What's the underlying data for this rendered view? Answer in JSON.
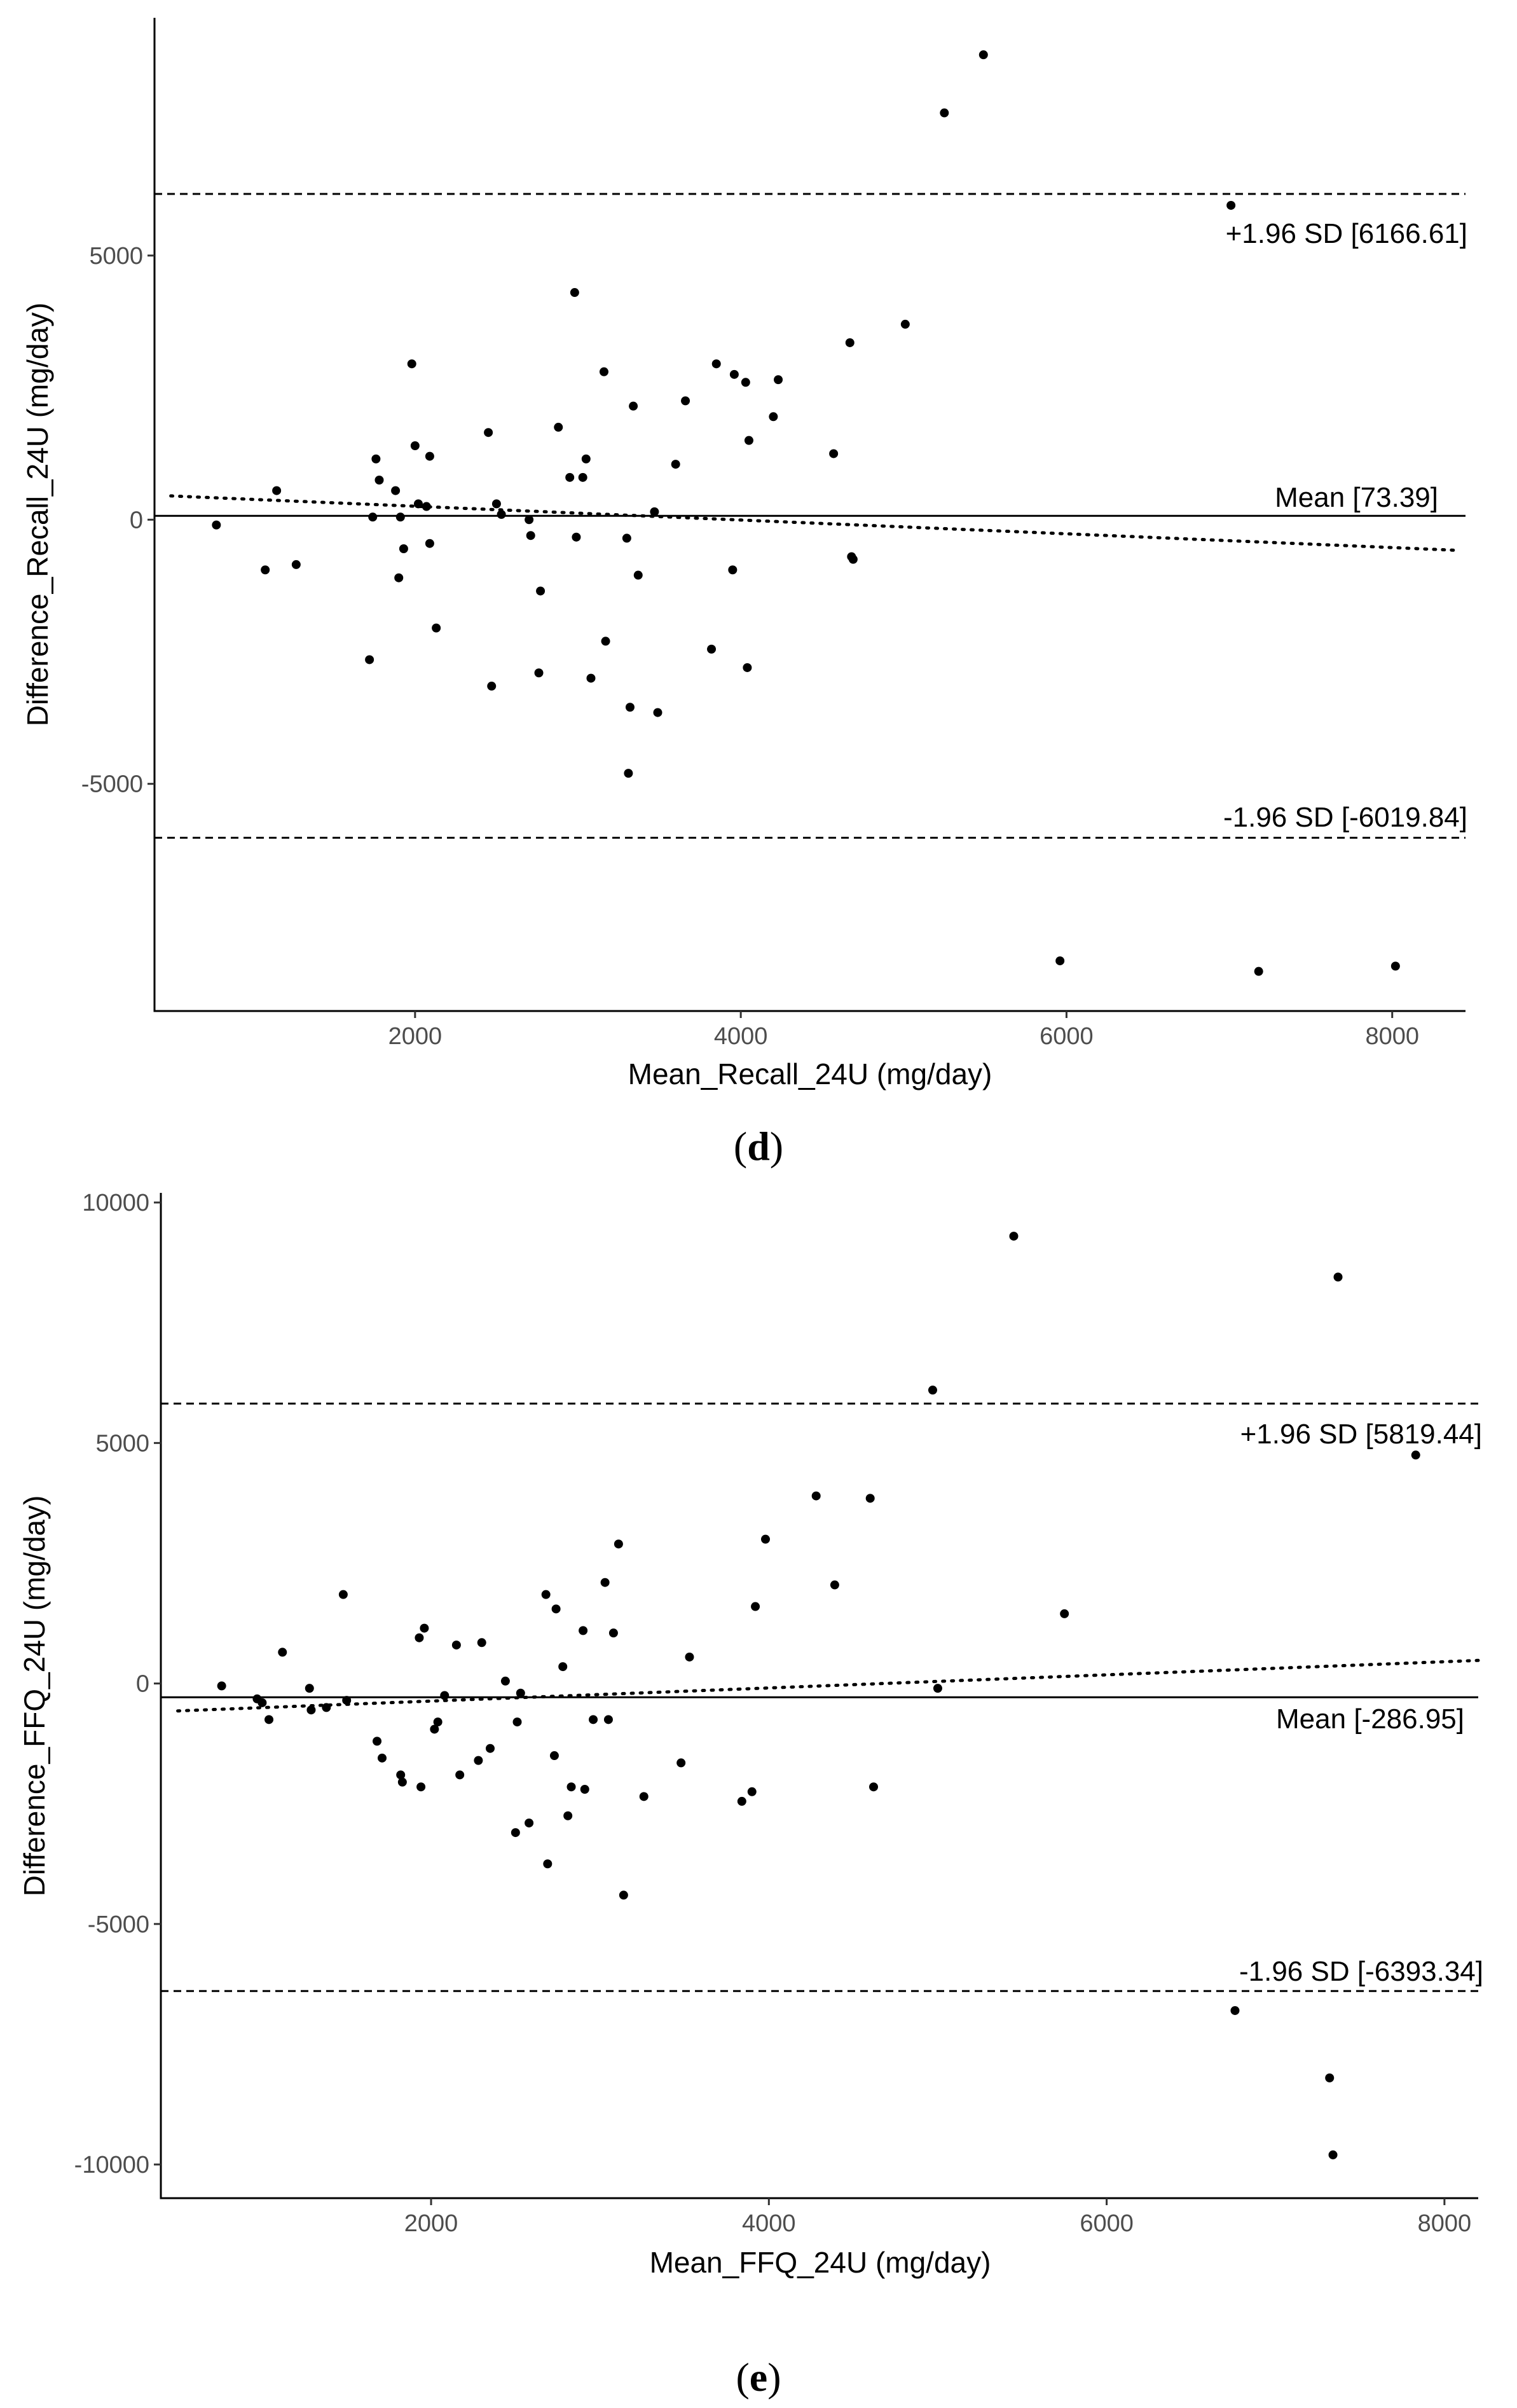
{
  "chart_data": [
    {
      "type": "scatter",
      "panel_label": "d",
      "xlabel": "Mean_Recall_24U (mg/day)",
      "ylabel": "Difference_Recall_24U (mg/day)",
      "xlim": [
        400,
        8450
      ],
      "ylim": [
        -9300,
        9500
      ],
      "xticks": [
        2000,
        4000,
        6000,
        8000
      ],
      "xtick_labels": [
        "2000",
        "4000",
        "6000",
        "8000"
      ],
      "yticks": [
        -5000,
        0,
        5000
      ],
      "ytick_labels": [
        "-5000",
        "0",
        "5000"
      ],
      "mean": 73.39,
      "upper_loa": 6166.61,
      "lower_loa": -6019.84,
      "mean_label": "Mean [73.39]",
      "upper_label": "+1.96 SD [6166.61]",
      "lower_label": "-1.96 SD [-6019.84]",
      "trend": [
        [
          500,
          450
        ],
        [
          8400,
          -580
        ]
      ],
      "points": [
        [
          780,
          -100
        ],
        [
          1080,
          -950
        ],
        [
          1150,
          550
        ],
        [
          1270,
          -850
        ],
        [
          1720,
          -2650
        ],
        [
          1740,
          50
        ],
        [
          1760,
          1150
        ],
        [
          1780,
          750
        ],
        [
          1880,
          550
        ],
        [
          1900,
          -1100
        ],
        [
          1910,
          50
        ],
        [
          1930,
          -550
        ],
        [
          1980,
          2950
        ],
        [
          2000,
          1400
        ],
        [
          2020,
          300
        ],
        [
          2070,
          250
        ],
        [
          2090,
          1200
        ],
        [
          2090,
          -450
        ],
        [
          2130,
          -2050
        ],
        [
          2450,
          1650
        ],
        [
          2470,
          -3150
        ],
        [
          2500,
          300
        ],
        [
          2530,
          100
        ],
        [
          2700,
          0
        ],
        [
          2710,
          -300
        ],
        [
          2760,
          -2900
        ],
        [
          2770,
          -1350
        ],
        [
          2880,
          1750
        ],
        [
          2950,
          800
        ],
        [
          2980,
          4300
        ],
        [
          2990,
          -330
        ],
        [
          3030,
          800
        ],
        [
          3050,
          1150
        ],
        [
          3080,
          -3000
        ],
        [
          3160,
          2800
        ],
        [
          3170,
          -2300
        ],
        [
          3300,
          -350
        ],
        [
          3310,
          -4800
        ],
        [
          3320,
          -3550
        ],
        [
          3340,
          2150
        ],
        [
          3370,
          -1050
        ],
        [
          3470,
          150
        ],
        [
          3490,
          -3650
        ],
        [
          3600,
          1050
        ],
        [
          3660,
          2250
        ],
        [
          3820,
          -2450
        ],
        [
          3850,
          2950
        ],
        [
          3950,
          -950
        ],
        [
          3960,
          2750
        ],
        [
          4030,
          2600
        ],
        [
          4040,
          -2800
        ],
        [
          4050,
          1500
        ],
        [
          4200,
          1950
        ],
        [
          4230,
          2650
        ],
        [
          4570,
          1250
        ],
        [
          4670,
          3350
        ],
        [
          4680,
          -700
        ],
        [
          4690,
          -750
        ],
        [
          5010,
          3700
        ],
        [
          5250,
          7700
        ],
        [
          5490,
          8800
        ],
        [
          5960,
          -8350
        ],
        [
          7010,
          5950
        ],
        [
          7180,
          -8550
        ],
        [
          8020,
          -8450
        ]
      ]
    },
    {
      "type": "scatter",
      "panel_label": "e",
      "xlabel": "Mean_FFQ_24U (mg/day)",
      "ylabel": "Difference_FFQ_24U (mg/day)",
      "xlim": [
        400,
        8200
      ],
      "ylim": [
        -10700,
        10200
      ],
      "xticks": [
        2000,
        4000,
        6000,
        8000
      ],
      "xtick_labels": [
        "2000",
        "4000",
        "6000",
        "8000"
      ],
      "yticks": [
        -10000,
        -5000,
        0,
        5000,
        10000
      ],
      "ytick_labels": [
        "-10000",
        "-5000",
        "0",
        "5000",
        "10000"
      ],
      "mean": -286.95,
      "upper_loa": 5819.44,
      "lower_loa": -6393.34,
      "mean_label": "Mean [-286.95]",
      "upper_label": "+1.96 SD [5819.44]",
      "lower_label": "-1.96 SD [-6393.34]",
      "trend": [
        [
          500,
          -570
        ],
        [
          8200,
          480
        ]
      ],
      "points": [
        [
          760,
          -50
        ],
        [
          970,
          -320
        ],
        [
          1000,
          -400
        ],
        [
          1040,
          -750
        ],
        [
          1120,
          650
        ],
        [
          1280,
          -100
        ],
        [
          1290,
          -550
        ],
        [
          1380,
          -500
        ],
        [
          1480,
          1850
        ],
        [
          1500,
          -350
        ],
        [
          1680,
          -1200
        ],
        [
          1710,
          -1550
        ],
        [
          1820,
          -1900
        ],
        [
          1830,
          -2050
        ],
        [
          1930,
          950
        ],
        [
          1940,
          -2150
        ],
        [
          1960,
          1150
        ],
        [
          2020,
          -950
        ],
        [
          2040,
          -800
        ],
        [
          2080,
          -250
        ],
        [
          2150,
          800
        ],
        [
          2170,
          -1900
        ],
        [
          2280,
          -1600
        ],
        [
          2300,
          850
        ],
        [
          2350,
          -1350
        ],
        [
          2440,
          50
        ],
        [
          2500,
          -3100
        ],
        [
          2510,
          -800
        ],
        [
          2530,
          -200
        ],
        [
          2580,
          -2900
        ],
        [
          2680,
          1850
        ],
        [
          2690,
          -3750
        ],
        [
          2730,
          -1500
        ],
        [
          2740,
          1550
        ],
        [
          2780,
          350
        ],
        [
          2810,
          -2750
        ],
        [
          2830,
          -2150
        ],
        [
          2900,
          1100
        ],
        [
          2910,
          -2200
        ],
        [
          2960,
          -750
        ],
        [
          3030,
          2100
        ],
        [
          3050,
          -750
        ],
        [
          3080,
          1050
        ],
        [
          3110,
          2900
        ],
        [
          3140,
          -4400
        ],
        [
          3260,
          -2350
        ],
        [
          3480,
          -1650
        ],
        [
          3530,
          550
        ],
        [
          3840,
          -2450
        ],
        [
          3900,
          -2250
        ],
        [
          3920,
          1600
        ],
        [
          3980,
          3000
        ],
        [
          4280,
          3900
        ],
        [
          4390,
          2050
        ],
        [
          4600,
          3850
        ],
        [
          4620,
          -2150
        ],
        [
          4970,
          6100
        ],
        [
          5000,
          -100
        ],
        [
          5450,
          9300
        ],
        [
          5750,
          1450
        ],
        [
          6760,
          -6800
        ],
        [
          7320,
          -8200
        ],
        [
          7340,
          -9800
        ],
        [
          7370,
          8450
        ],
        [
          7830,
          4750
        ]
      ]
    }
  ]
}
